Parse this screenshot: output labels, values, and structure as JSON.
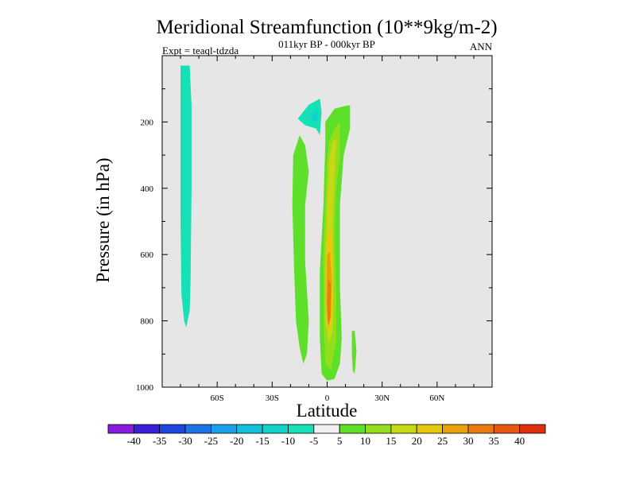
{
  "chart_data": {
    "type": "contour",
    "title": "Meridional Streamfunction (10**9kg/m-2)",
    "subtitle": "011kyr BP - 000kyr BP",
    "left_label": "Expt = teaql-tdzda",
    "right_label": "ANN",
    "xlabel": "Latitude",
    "ylabel": "Pressure (in hPa)",
    "xlim": [
      -90,
      90
    ],
    "ylim": [
      1000,
      0
    ],
    "x_ticks": [
      {
        "value": -60,
        "label": "60S"
      },
      {
        "value": -30,
        "label": "30S"
      },
      {
        "value": 0,
        "label": "0"
      },
      {
        "value": 30,
        "label": "30N"
      },
      {
        "value": 60,
        "label": "60N"
      }
    ],
    "y_ticks": [
      {
        "value": 200,
        "label": "200"
      },
      {
        "value": 400,
        "label": "400"
      },
      {
        "value": 600,
        "label": "600"
      },
      {
        "value": 800,
        "label": "800"
      },
      {
        "value": 1000,
        "label": "1000"
      }
    ],
    "background_color": "#e6e6e6",
    "colorbar": {
      "levels": [
        -40,
        -35,
        -30,
        -25,
        -20,
        -15,
        -10,
        -5,
        5,
        10,
        15,
        20,
        25,
        30,
        35,
        40
      ],
      "labels": [
        "-40",
        "-35",
        "-30",
        "-25",
        "-20",
        "-15",
        "-10",
        "-5",
        "5",
        "10",
        "15",
        "20",
        "25",
        "30",
        "35",
        "40"
      ],
      "colors": [
        "#8a1be0",
        "#3a1fd8",
        "#1f47e0",
        "#1c75e6",
        "#1aa0e8",
        "#12c0d8",
        "#10d4cc",
        "#16e0b6",
        "#f0f0f0",
        "#5ee02a",
        "#92de1c",
        "#c8d812",
        "#e8c80c",
        "#e8a00c",
        "#e87c10",
        "#e85812",
        "#e0300e"
      ]
    },
    "regions": [
      {
        "name": "southern-cell",
        "value": -7,
        "polygon": [
          [
            -80,
            30
          ],
          [
            -75,
            30
          ],
          [
            -74,
            150
          ],
          [
            -74,
            400
          ],
          [
            -74.5,
            680
          ],
          [
            -75,
            770
          ],
          [
            -77,
            820
          ],
          [
            -78,
            800
          ],
          [
            -79.5,
            720
          ],
          [
            -80,
            500
          ],
          [
            -80,
            150
          ]
        ]
      },
      {
        "name": "upper-negative-cell",
        "value": -7,
        "polygon": [
          [
            -16,
            190
          ],
          [
            -10,
            148
          ],
          [
            -4,
            130
          ],
          [
            -3,
            170
          ],
          [
            -4,
            240
          ],
          [
            -6,
            220
          ],
          [
            -12,
            210
          ]
        ]
      },
      {
        "name": "upper-negative-core",
        "value": -12,
        "polygon": [
          [
            -9,
            185
          ],
          [
            -7,
            170
          ],
          [
            -5,
            172
          ],
          [
            -5.5,
            195
          ],
          [
            -7,
            200
          ],
          [
            -8.5,
            197
          ]
        ]
      },
      {
        "name": "tropical-band-south",
        "value": 7,
        "polygon": [
          [
            -15,
            240
          ],
          [
            -12,
            270
          ],
          [
            -10,
            350
          ],
          [
            -12,
            450
          ],
          [
            -12,
            620
          ],
          [
            -10,
            800
          ],
          [
            -11,
            900
          ],
          [
            -13,
            930
          ],
          [
            -15,
            880
          ],
          [
            -17,
            800
          ],
          [
            -18,
            650
          ],
          [
            -19,
            450
          ],
          [
            -18.5,
            300
          ]
        ]
      },
      {
        "name": "tropical-main-5",
        "value": 7,
        "polygon": [
          [
            -1,
            260
          ],
          [
            -1,
            200
          ],
          [
            4,
            160
          ],
          [
            11,
            150
          ],
          [
            12.5,
            150
          ],
          [
            12.5,
            220
          ],
          [
            9,
            300
          ],
          [
            7,
            450
          ],
          [
            7,
            700
          ],
          [
            8,
            850
          ],
          [
            7,
            930
          ],
          [
            4,
            975
          ],
          [
            0,
            980
          ],
          [
            -3,
            960
          ],
          [
            -4,
            850
          ],
          [
            -4,
            650
          ],
          [
            -2,
            450
          ]
        ]
      },
      {
        "name": "tropical-main-10",
        "value": 12,
        "polygon": [
          [
            0,
            320
          ],
          [
            1,
            260
          ],
          [
            4,
            220
          ],
          [
            7,
            200
          ],
          [
            7,
            300
          ],
          [
            5,
            400
          ],
          [
            4,
            560
          ],
          [
            5,
            720
          ],
          [
            5,
            860
          ],
          [
            2,
            950
          ],
          [
            -1,
            930
          ],
          [
            -2,
            800
          ],
          [
            -2,
            600
          ],
          [
            -1,
            450
          ]
        ]
      },
      {
        "name": "tropical-main-15",
        "value": 17,
        "polygon": [
          [
            1,
            320
          ],
          [
            3,
            260
          ],
          [
            5,
            250
          ],
          [
            4,
            360
          ],
          [
            3,
            520
          ],
          [
            3.5,
            700
          ],
          [
            3,
            830
          ],
          [
            1,
            870
          ],
          [
            -1,
            800
          ],
          [
            -1,
            620
          ],
          [
            0,
            450
          ]
        ]
      },
      {
        "name": "tropical-main-20",
        "value": 22,
        "polygon": [
          [
            0,
            550
          ],
          [
            2,
            520
          ],
          [
            3,
            600
          ],
          [
            3,
            760
          ],
          [
            1.5,
            830
          ],
          [
            0,
            790
          ],
          [
            -1,
            680
          ]
        ]
      },
      {
        "name": "tropical-main-25",
        "value": 27,
        "polygon": [
          [
            0,
            600
          ],
          [
            1.5,
            590
          ],
          [
            2.5,
            680
          ],
          [
            2,
            790
          ],
          [
            0.5,
            820
          ],
          [
            -0.5,
            740
          ]
        ]
      },
      {
        "name": "tropical-main-30",
        "value": 32,
        "polygon": [
          [
            0.5,
            670
          ],
          [
            2,
            690
          ],
          [
            1.8,
            790
          ],
          [
            0.5,
            815
          ],
          [
            0,
            760
          ]
        ]
      },
      {
        "name": "small-north-cell",
        "value": 7,
        "polygon": [
          [
            13.5,
            830
          ],
          [
            15,
            830
          ],
          [
            16,
            890
          ],
          [
            15,
            960
          ],
          [
            14,
            950
          ],
          [
            13.5,
            900
          ]
        ]
      }
    ]
  }
}
